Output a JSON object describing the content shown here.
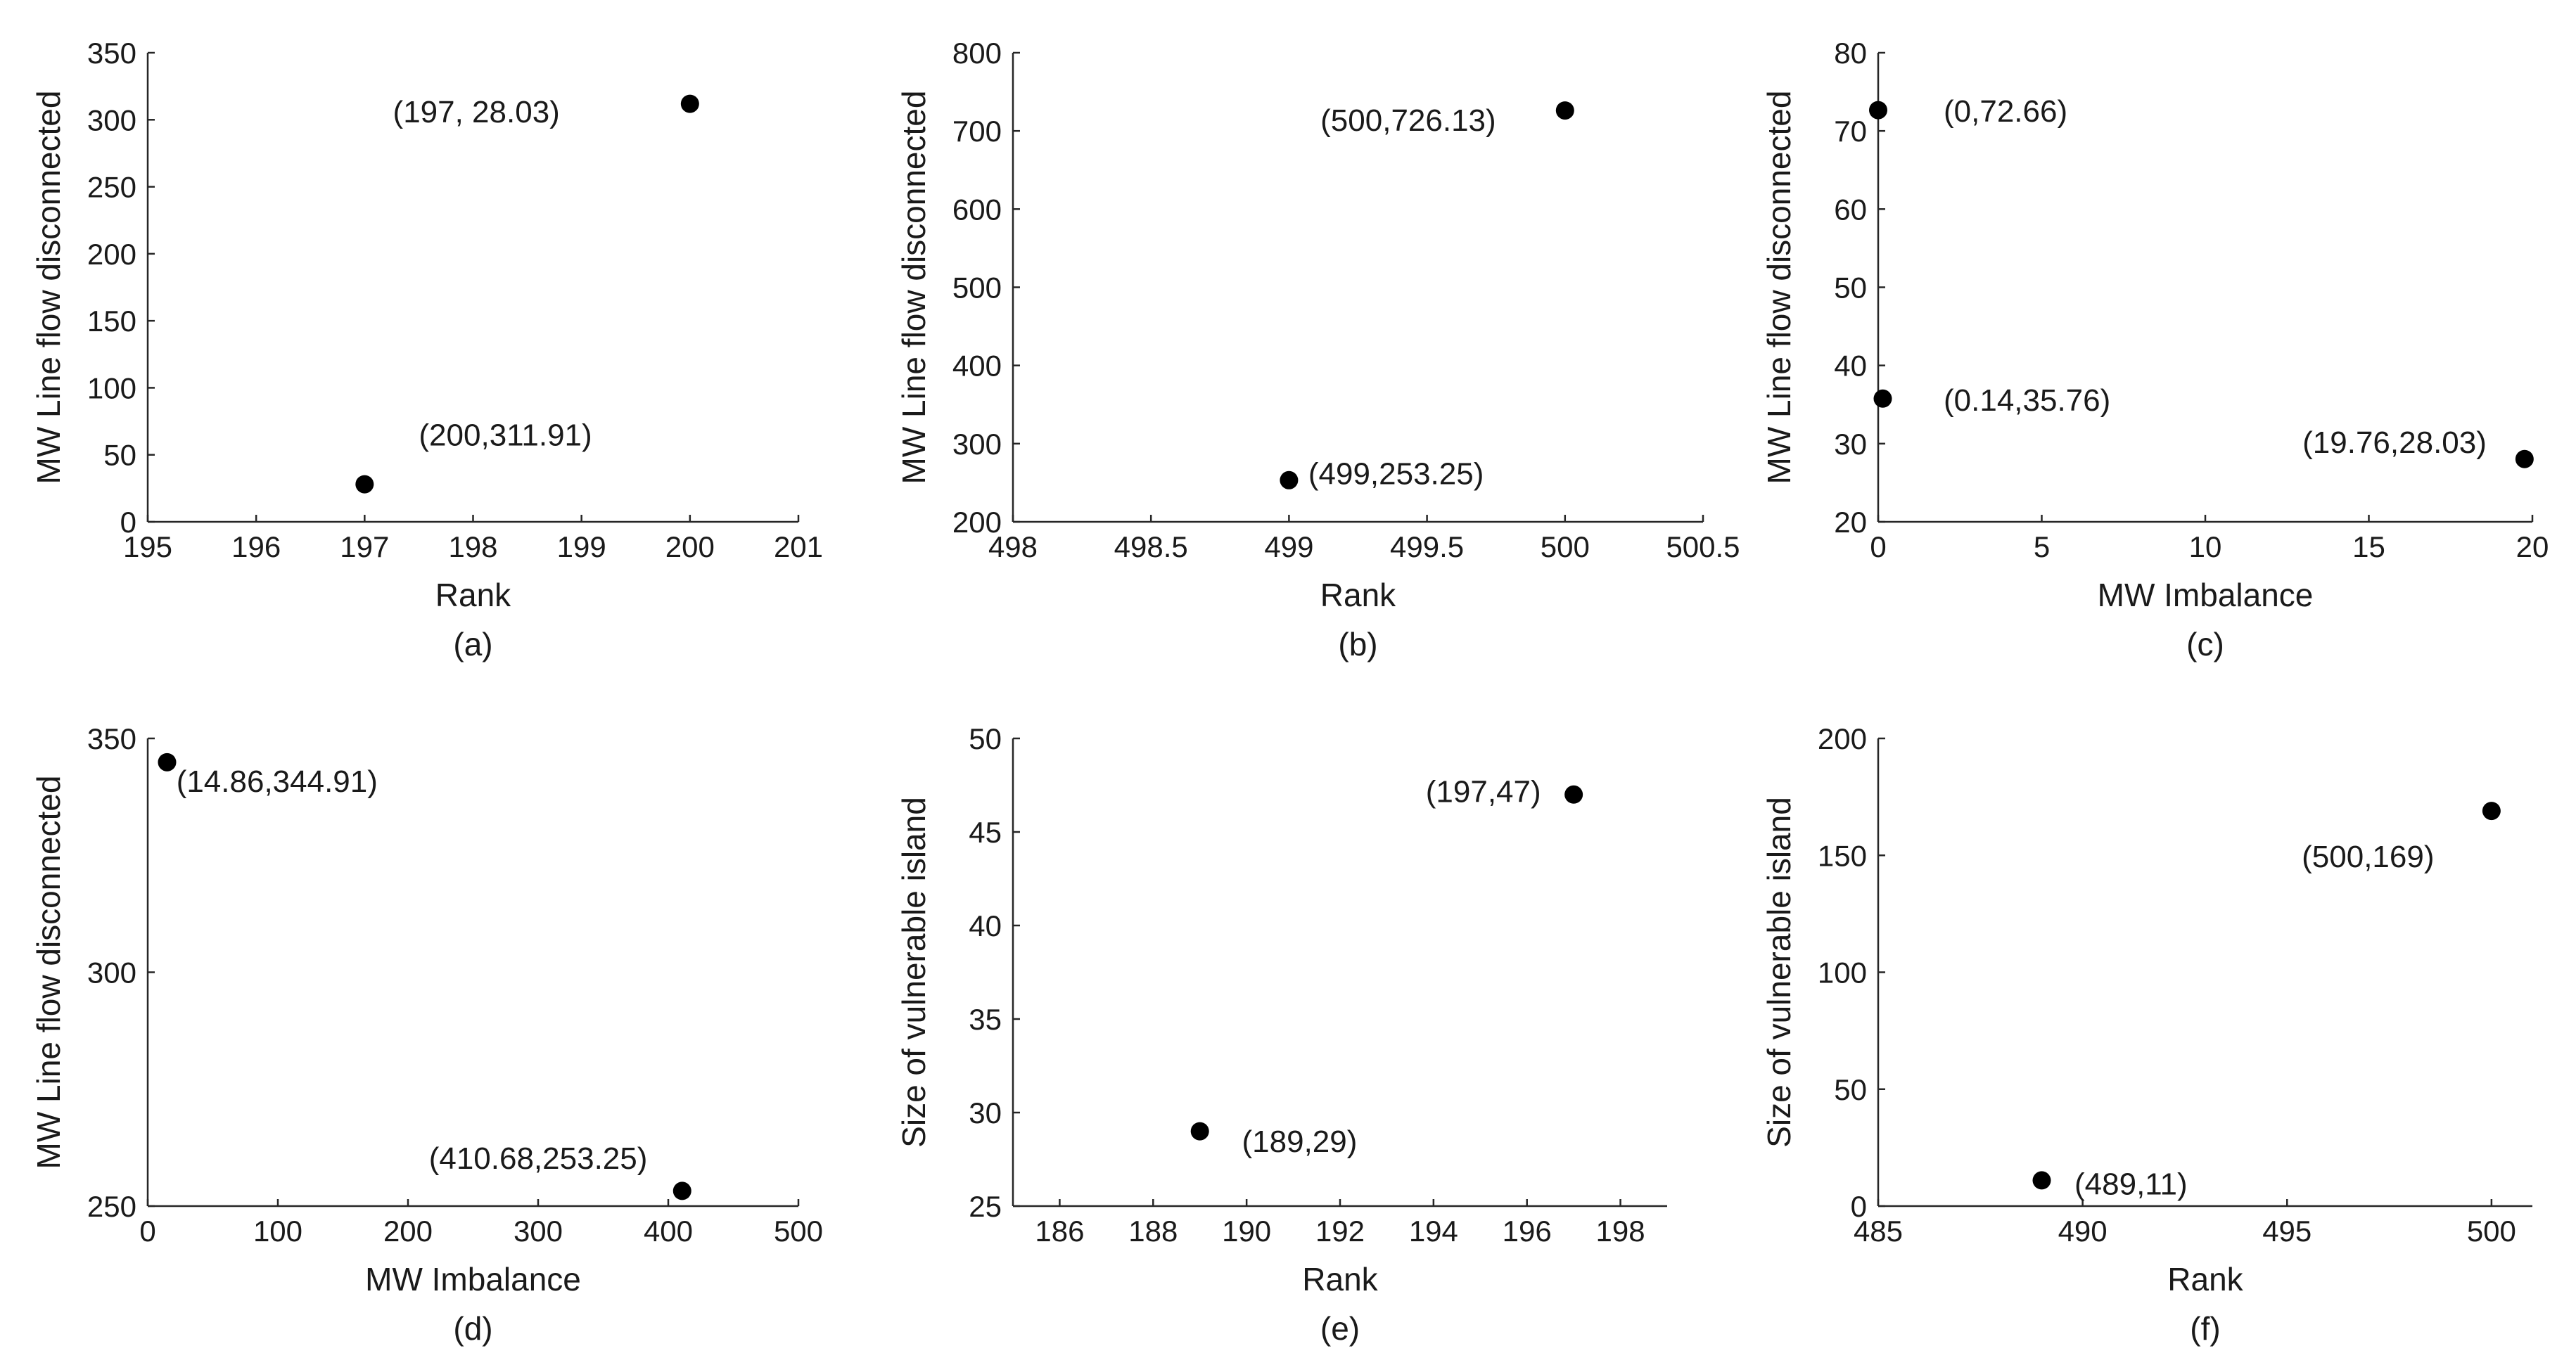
{
  "chart_data": [
    {
      "id": "a",
      "type": "scatter",
      "caption": "(a)",
      "xlabel": "Rank",
      "ylabel": "MW Line flow disconnected",
      "xlim": [
        195,
        201
      ],
      "ylim": [
        0,
        350
      ],
      "xticks": [
        195,
        196,
        197,
        198,
        199,
        200,
        201
      ],
      "yticks": [
        0,
        50,
        100,
        150,
        200,
        250,
        300,
        350
      ],
      "points": [
        {
          "x": 197,
          "y": 28.03
        },
        {
          "x": 200,
          "y": 311.91
        }
      ],
      "annotations": [
        {
          "text": "(197, 28.03)",
          "x": 198.8,
          "y": 298,
          "anchor": "end"
        },
        {
          "text": "(200,311.91)",
          "x": 197.5,
          "y": 57,
          "anchor": "start"
        }
      ],
      "grid": false
    },
    {
      "id": "b",
      "type": "scatter",
      "caption": "(b)",
      "xlabel": "Rank",
      "ylabel": "MW Line flow disconnected",
      "xlim": [
        498,
        500.5
      ],
      "ylim": [
        200,
        800
      ],
      "xticks": [
        498,
        498.5,
        499,
        499.5,
        500,
        500.5
      ],
      "xtick_labels": [
        "498",
        "498.5",
        "499",
        "499.5",
        "500",
        "500.5"
      ],
      "yticks": [
        200,
        300,
        400,
        500,
        600,
        700,
        800
      ],
      "points": [
        {
          "x": 499,
          "y": 253.25
        },
        {
          "x": 500,
          "y": 726.13
        }
      ],
      "annotations": [
        {
          "text": "(500,726.13)",
          "x": 499.75,
          "y": 700,
          "anchor": "end"
        },
        {
          "text": "(499,253.25)",
          "x": 499.07,
          "y": 248,
          "anchor": "start"
        }
      ],
      "grid": false
    },
    {
      "id": "c",
      "type": "scatter",
      "caption": "(c)",
      "xlabel": "MW Imbalance",
      "ylabel": "MW Line flow disconnected",
      "xlim": [
        0,
        20
      ],
      "ylim": [
        20,
        80
      ],
      "xticks": [
        0,
        5,
        10,
        15,
        20
      ],
      "yticks": [
        20,
        30,
        40,
        50,
        60,
        70,
        80
      ],
      "points": [
        {
          "x": 0,
          "y": 72.66
        },
        {
          "x": 0.14,
          "y": 35.76
        },
        {
          "x": 19.76,
          "y": 28.03
        }
      ],
      "annotations": [
        {
          "text": "(0,72.66)",
          "x": 2.0,
          "y": 71.2,
          "anchor": "start"
        },
        {
          "text": "(0.14,35.76)",
          "x": 2.0,
          "y": 34.2,
          "anchor": "start"
        },
        {
          "text": "(19.76,28.03)",
          "x": 18.6,
          "y": 28.8,
          "anchor": "end"
        }
      ],
      "grid": false
    },
    {
      "id": "d",
      "type": "scatter",
      "caption": "(d)",
      "xlabel": "MW Imbalance",
      "ylabel": "MW Line flow disconnected",
      "xlim": [
        0,
        500
      ],
      "ylim": [
        250,
        350
      ],
      "xticks": [
        0,
        100,
        200,
        300,
        400,
        500
      ],
      "yticks": [
        250,
        300,
        350
      ],
      "points": [
        {
          "x": 14.86,
          "y": 344.91
        },
        {
          "x": 410.68,
          "y": 253.25
        }
      ],
      "annotations": [
        {
          "text": "(14.86,344.91)",
          "x": 22,
          "y": 338.6,
          "anchor": "start"
        },
        {
          "text": "(410.68,253.25)",
          "x": 384,
          "y": 258,
          "anchor": "end"
        }
      ],
      "grid": false
    },
    {
      "id": "e",
      "type": "scatter",
      "caption": "(e)",
      "xlabel": "Rank",
      "ylabel": "Size of vulnerable island",
      "xlim": [
        185,
        199
      ],
      "ylim": [
        25,
        50
      ],
      "xticks": [
        186,
        188,
        190,
        192,
        194,
        196,
        198
      ],
      "yticks": [
        25,
        30,
        35,
        40,
        45,
        50
      ],
      "points": [
        {
          "x": 189,
          "y": 29
        },
        {
          "x": 197,
          "y": 47
        }
      ],
      "annotations": [
        {
          "text": "(197,47)",
          "x": 196.3,
          "y": 46.6,
          "anchor": "end"
        },
        {
          "text": "(189,29)",
          "x": 189.9,
          "y": 27.9,
          "anchor": "start"
        }
      ],
      "grid": false
    },
    {
      "id": "f",
      "type": "scatter",
      "caption": "(f)",
      "xlabel": "Rank",
      "ylabel": "Size of vulnerable island",
      "xlim": [
        485,
        501
      ],
      "ylim": [
        0,
        200
      ],
      "xticks": [
        485,
        490,
        495,
        500
      ],
      "yticks": [
        0,
        50,
        100,
        150,
        200
      ],
      "points": [
        {
          "x": 489,
          "y": 11
        },
        {
          "x": 500,
          "y": 169
        }
      ],
      "annotations": [
        {
          "text": "(500,169)",
          "x": 498.6,
          "y": 145,
          "anchor": "end"
        },
        {
          "text": "(489,11)",
          "x": 489.8,
          "y": 5,
          "anchor": "start"
        }
      ],
      "grid": false
    }
  ]
}
